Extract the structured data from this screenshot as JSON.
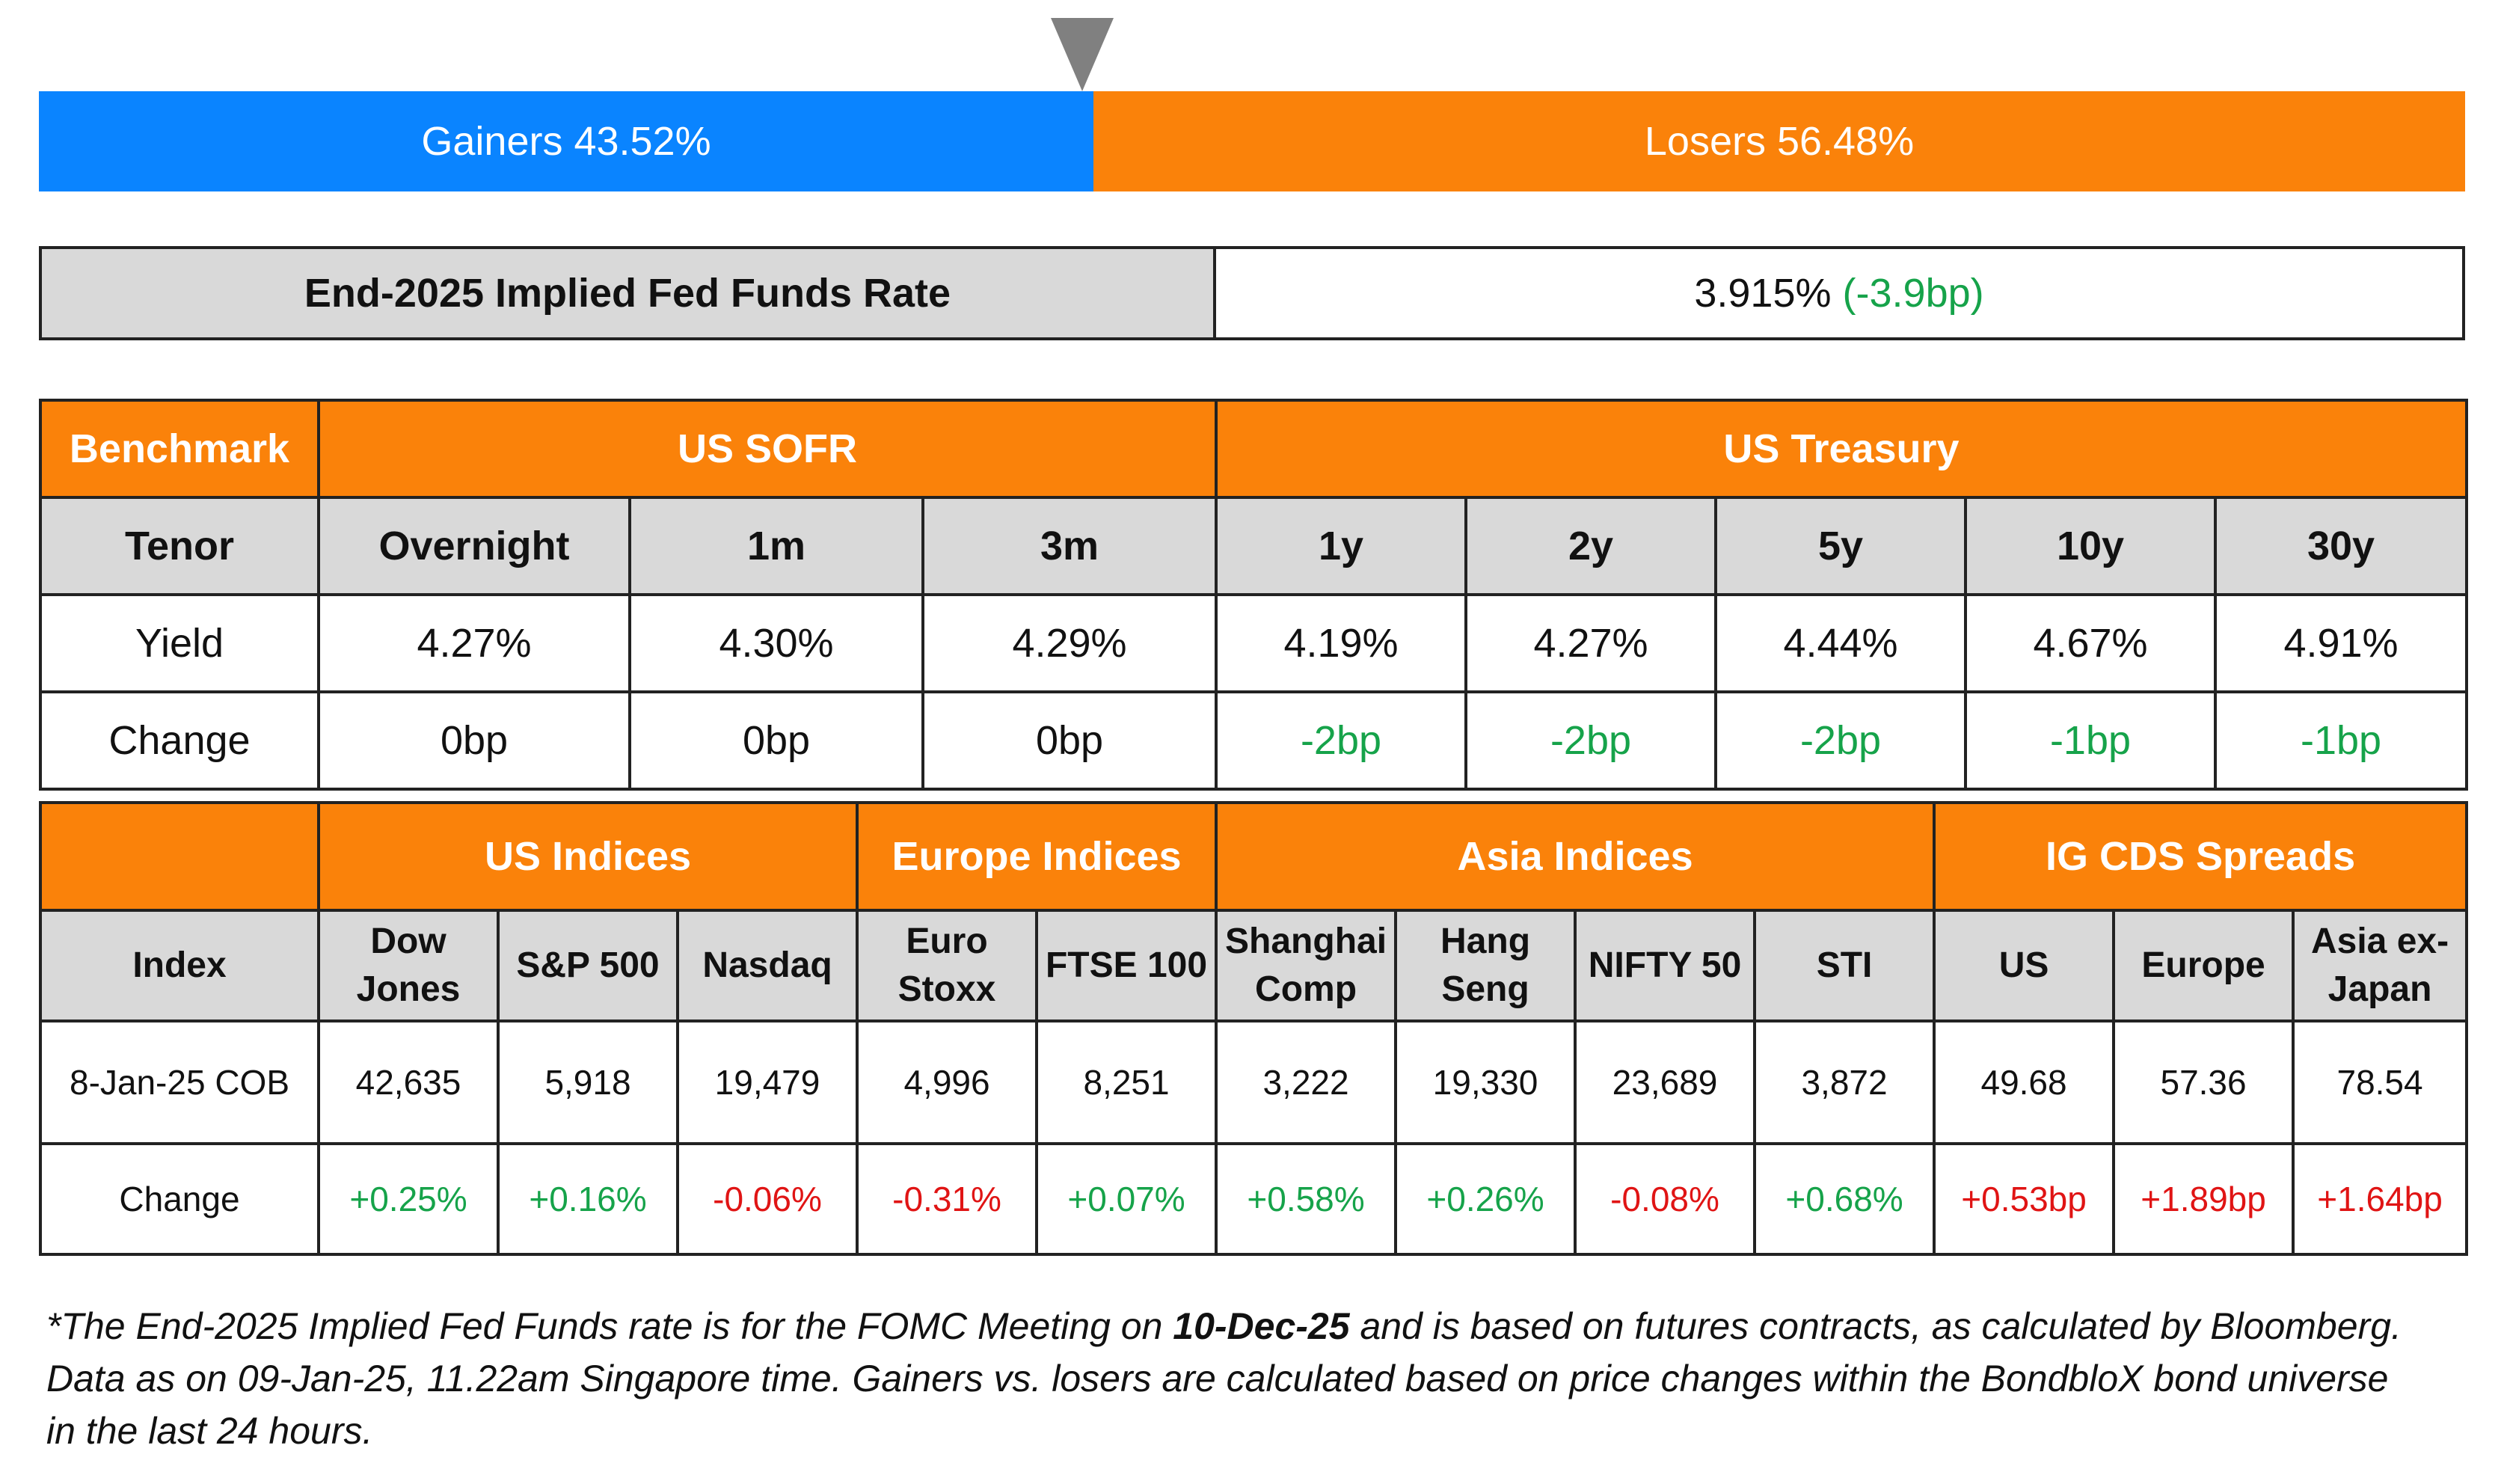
{
  "ratio": {
    "gainers_label": "Gainers 43.52%",
    "losers_label": "Losers 56.48%",
    "gainers_pct": 43.52,
    "losers_pct": 56.48,
    "colors": {
      "gainers": "#0a84ff",
      "losers": "#fa820a"
    }
  },
  "fed": {
    "label": "End-2025 Implied Fed Funds Rate",
    "value": "3.915%",
    "change": "(-3.9bp)"
  },
  "rates": {
    "benchmark_label": "Benchmark",
    "sofr_label": "US SOFR",
    "treasury_label": "US Treasury",
    "tenor_label": "Tenor",
    "yield_label": "Yield",
    "change_label": "Change",
    "tenors": [
      "Overnight",
      "1m",
      "3m",
      "1y",
      "2y",
      "5y",
      "10y",
      "30y"
    ],
    "yields": [
      "4.27%",
      "4.30%",
      "4.29%",
      "4.19%",
      "4.27%",
      "4.44%",
      "4.67%",
      "4.91%"
    ],
    "changes": [
      "0bp",
      "0bp",
      "0bp",
      "-2bp",
      "-2bp",
      "-2bp",
      "-1bp",
      "-1bp"
    ]
  },
  "indices": {
    "groups": [
      "US Indices",
      "Europe Indices",
      "Asia Indices",
      "IG CDS Spreads"
    ],
    "index_label": "Index",
    "names": [
      [
        "Dow",
        "Jones"
      ],
      [
        "S&P 500"
      ],
      [
        "Nasdaq"
      ],
      [
        "Euro",
        "Stoxx"
      ],
      [
        "FTSE 100"
      ],
      [
        "Shanghai",
        "Comp"
      ],
      [
        "Hang",
        "Seng"
      ],
      [
        "NIFTY 50"
      ],
      [
        "STI"
      ],
      [
        "US"
      ],
      [
        "Europe"
      ],
      [
        "Asia ex-",
        "Japan"
      ]
    ],
    "date_label": "8-Jan-25 COB",
    "change_label": "Change",
    "values": [
      "42,635",
      "5,918",
      "19,479",
      "4,996",
      "8,251",
      "3,222",
      "19,330",
      "23,689",
      "3,872",
      "49.68",
      "57.36",
      "78.54"
    ],
    "changes": [
      "+0.25%",
      "+0.16%",
      "-0.06%",
      "-0.31%",
      "+0.07%",
      "+0.58%",
      "+0.26%",
      "-0.08%",
      "+0.68%",
      "+0.53bp",
      "+1.89bp",
      "+1.64bp"
    ]
  },
  "footnote": {
    "part1": "*The End-2025 Implied Fed Funds rate is for the FOMC Meeting on ",
    "bold": "10-Dec-25",
    "part2": " and is based on futures contracts, as calculated by Bloomberg. Data as on 09-Jan-25, 11.22am Singapore time. Gainers vs. losers are calculated based on price changes within the BondbloX bond universe in the last 24 hours."
  }
}
